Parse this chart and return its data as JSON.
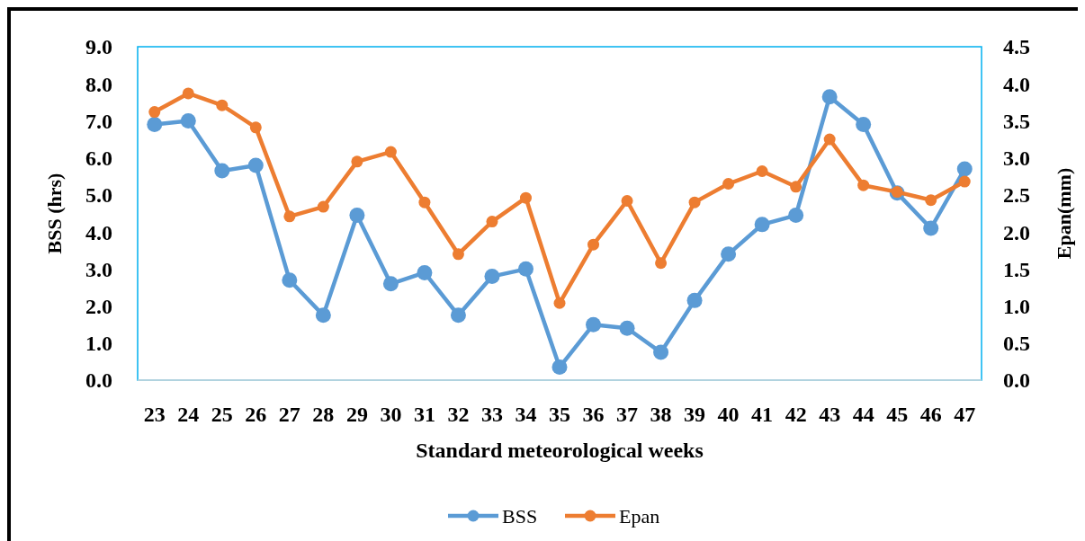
{
  "chart_data": {
    "type": "line",
    "xlabel": "Standard meteorological weeks",
    "ylabel": "BSS (hrs)",
    "y2label": "Epan(mm)",
    "categories": [
      "23",
      "24",
      "25",
      "26",
      "27",
      "28",
      "29",
      "30",
      "31",
      "32",
      "33",
      "34",
      "35",
      "36",
      "37",
      "38",
      "39",
      "40",
      "41",
      "42",
      "43",
      "44",
      "45",
      "46",
      "47"
    ],
    "series": [
      {
        "name": "BSS",
        "color": "#5b9bd5",
        "values": [
          6.9,
          7.0,
          5.65,
          5.8,
          2.7,
          1.75,
          4.45,
          2.6,
          2.9,
          1.75,
          2.8,
          3.0,
          0.35,
          1.5,
          1.4,
          0.75,
          2.15,
          3.4,
          4.2,
          4.45,
          7.65,
          6.9,
          5.05,
          4.1,
          5.7
        ]
      },
      {
        "name": "Epan",
        "color": "#ed7d31",
        "axis": "y2",
        "values": [
          3.62,
          3.87,
          3.71,
          3.41,
          2.21,
          2.34,
          2.95,
          3.08,
          2.4,
          1.7,
          2.14,
          2.46,
          1.04,
          1.83,
          2.42,
          1.58,
          2.4,
          2.65,
          2.82,
          2.61,
          3.25,
          2.63,
          2.54,
          2.43,
          2.68
        ]
      }
    ],
    "ylim": [
      0,
      9
    ],
    "yticks": [
      {
        "value": 0,
        "label": "0.0"
      },
      {
        "value": 1,
        "label": "1.0"
      },
      {
        "value": 2,
        "label": "2.0"
      },
      {
        "value": 3,
        "label": "3.0"
      },
      {
        "value": 4,
        "label": "4.0"
      },
      {
        "value": 5,
        "label": "5.0"
      },
      {
        "value": 6,
        "label": "6.0"
      },
      {
        "value": 7,
        "label": "7.0"
      },
      {
        "value": 8,
        "label": "8.0"
      },
      {
        "value": 9,
        "label": "9.0"
      }
    ],
    "y2lim": [
      0,
      4.5
    ],
    "y2ticks": [
      {
        "value": 0,
        "label": "0.0"
      },
      0.5,
      {
        "value": 1,
        "label": "1.0"
      },
      1.5,
      {
        "value": 2,
        "label": "2.0"
      },
      2.5,
      {
        "value": 3,
        "label": "3.0"
      },
      3.5,
      {
        "value": 4,
        "label": "4.0"
      },
      4.5
    ],
    "grid": false,
    "legend": "bottom",
    "marker": "circle",
    "line_style": "solid"
  }
}
